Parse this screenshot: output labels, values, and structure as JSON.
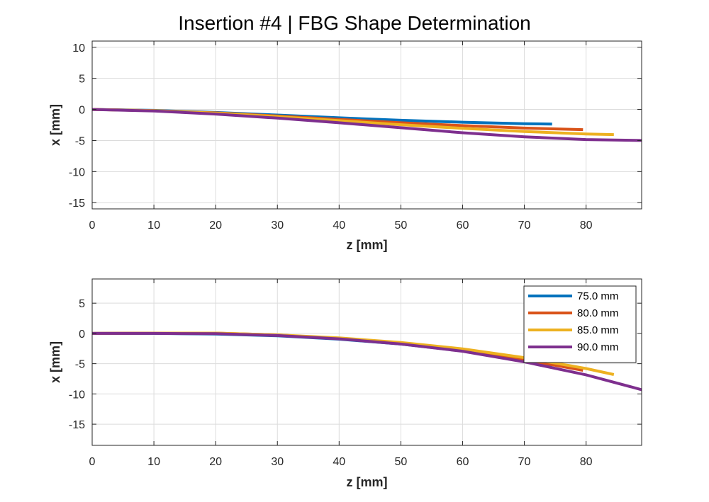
{
  "figure": {
    "title": "Insertion #4 | FBG Shape Determination"
  },
  "colors": {
    "series": [
      "#0072BD",
      "#D95319",
      "#EDB120",
      "#7E2F8E"
    ],
    "axes": "#262626",
    "grid": "#dcdcdc",
    "background": "#ffffff"
  },
  "chart_data": [
    {
      "type": "line",
      "title": "",
      "xlabel": "z [mm]",
      "ylabel": "x [mm]",
      "xlim": [
        0,
        89
      ],
      "ylim": [
        -16,
        11
      ],
      "xticks": [
        0,
        10,
        20,
        30,
        40,
        50,
        60,
        70,
        80
      ],
      "yticks": [
        -15,
        -10,
        -5,
        0,
        5,
        10
      ],
      "grid": true,
      "legend": null,
      "series": [
        {
          "name": "75.0 mm",
          "x": [
            0,
            10,
            20,
            30,
            40,
            50,
            60,
            70,
            74.5
          ],
          "y": [
            0,
            -0.15,
            -0.5,
            -0.9,
            -1.35,
            -1.75,
            -2.05,
            -2.3,
            -2.35
          ]
        },
        {
          "name": "80.0 mm",
          "x": [
            0,
            10,
            20,
            30,
            40,
            50,
            60,
            70,
            79.5
          ],
          "y": [
            0,
            -0.2,
            -0.55,
            -1.05,
            -1.6,
            -2.15,
            -2.6,
            -3.0,
            -3.25
          ]
        },
        {
          "name": "85.0 mm",
          "x": [
            0,
            10,
            20,
            30,
            40,
            50,
            60,
            70,
            80,
            84.5
          ],
          "y": [
            0,
            -0.2,
            -0.6,
            -1.15,
            -1.8,
            -2.45,
            -3.05,
            -3.55,
            -3.95,
            -4.05
          ]
        },
        {
          "name": "90.0 mm",
          "x": [
            0,
            10,
            20,
            30,
            40,
            50,
            60,
            70,
            80,
            89
          ],
          "y": [
            0,
            -0.25,
            -0.75,
            -1.4,
            -2.15,
            -2.95,
            -3.75,
            -4.4,
            -4.85,
            -5.0
          ]
        }
      ]
    },
    {
      "type": "line",
      "title": "",
      "xlabel": "z [mm]",
      "ylabel": "x [mm]",
      "xlim": [
        0,
        89
      ],
      "ylim": [
        -18.5,
        9
      ],
      "xticks": [
        0,
        10,
        20,
        30,
        40,
        50,
        60,
        70,
        80
      ],
      "yticks": [
        -15,
        -10,
        -5,
        0,
        5
      ],
      "grid": true,
      "legend": "top-right",
      "series": [
        {
          "name": "75.0 mm",
          "x": [
            0,
            10,
            20,
            30,
            40,
            50,
            60,
            70,
            74.5
          ],
          "y": [
            0,
            0.0,
            -0.1,
            -0.4,
            -0.95,
            -1.75,
            -2.9,
            -4.5,
            -5.35
          ]
        },
        {
          "name": "80.0 mm",
          "x": [
            0,
            10,
            20,
            30,
            40,
            50,
            60,
            70,
            79.5
          ],
          "y": [
            0,
            0.05,
            0.05,
            -0.25,
            -0.85,
            -1.65,
            -2.75,
            -4.35,
            -6.1
          ]
        },
        {
          "name": "85.0 mm",
          "x": [
            0,
            10,
            20,
            30,
            40,
            50,
            60,
            70,
            80,
            84.5
          ],
          "y": [
            0,
            0.05,
            0.05,
            -0.25,
            -0.75,
            -1.5,
            -2.55,
            -4.0,
            -5.8,
            -6.8
          ]
        },
        {
          "name": "90.0 mm",
          "x": [
            0,
            10,
            20,
            30,
            40,
            50,
            60,
            70,
            80,
            89
          ],
          "y": [
            0,
            0.0,
            -0.05,
            -0.35,
            -0.9,
            -1.75,
            -2.95,
            -4.7,
            -6.85,
            -9.3
          ]
        }
      ]
    }
  ]
}
